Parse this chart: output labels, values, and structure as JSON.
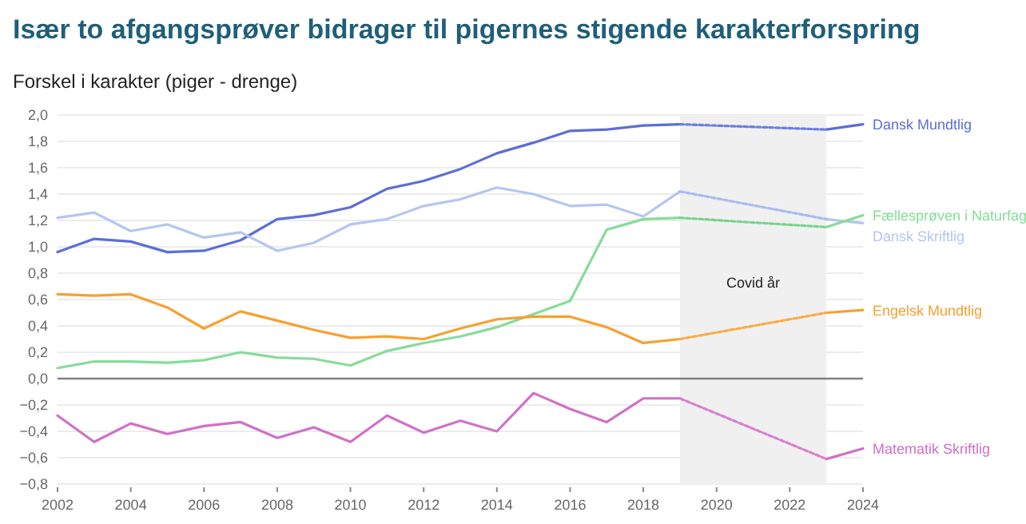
{
  "chart_data": {
    "type": "line",
    "title": "Især to afgangsprøver bidrager til pigernes stigende karakterforspring",
    "ylabel": "Forskel i karakter (piger - drenge)",
    "x": [
      2002,
      2003,
      2004,
      2005,
      2006,
      2007,
      2008,
      2009,
      2010,
      2011,
      2012,
      2013,
      2014,
      2015,
      2016,
      2017,
      2018,
      2019,
      2020,
      2021,
      2022,
      2023,
      2024
    ],
    "xlim": [
      2002,
      2024
    ],
    "xticks": [
      2002,
      2004,
      2006,
      2008,
      2010,
      2012,
      2014,
      2016,
      2018,
      2020,
      2022,
      2024
    ],
    "ylim": [
      -0.8,
      2.0
    ],
    "yticks": [
      {
        "value": -0.8,
        "label": "−0,8"
      },
      {
        "value": -0.6,
        "label": "−0,6"
      },
      {
        "value": -0.4,
        "label": "−0,4"
      },
      {
        "value": -0.2,
        "label": "−0,2"
      },
      {
        "value": 0,
        "label": "0,0"
      },
      {
        "value": 0.2,
        "label": "0,2"
      },
      {
        "value": 0.4,
        "label": "0,4"
      },
      {
        "value": 0.6,
        "label": "0,6"
      },
      {
        "value": 0.8,
        "label": "0,8"
      },
      {
        "value": 1.0,
        "label": "1,0"
      },
      {
        "value": 1.2,
        "label": "1,2"
      },
      {
        "value": 1.4,
        "label": "1,4"
      },
      {
        "value": 1.6,
        "label": "1,6"
      },
      {
        "value": 1.8,
        "label": "1,8"
      },
      {
        "value": 2.0,
        "label": "2,0"
      }
    ],
    "grid": "y",
    "line_style": "solid",
    "marker": "none",
    "ref_lines": [
      {
        "axis": "y",
        "value": 0,
        "color": "#808080"
      }
    ],
    "bands": [
      {
        "axis": "x",
        "from": 2019,
        "to": 2023,
        "label": "Covid år",
        "color": "#f0f0f0"
      }
    ],
    "series": [
      {
        "name": "Dansk Mundtlig",
        "color": "#5b6fd6",
        "values": [
          0.96,
          1.06,
          1.04,
          0.96,
          0.97,
          1.05,
          1.21,
          1.24,
          1.3,
          1.44,
          1.5,
          1.59,
          1.71,
          1.79,
          1.88,
          1.89,
          1.92,
          1.93,
          null,
          null,
          null,
          1.89,
          1.93
        ]
      },
      {
        "name": "Dansk Skriftlig",
        "color": "#b4c6f0",
        "values": [
          1.22,
          1.26,
          1.12,
          1.17,
          1.07,
          1.11,
          0.97,
          1.03,
          1.17,
          1.21,
          1.31,
          1.36,
          1.45,
          1.4,
          1.31,
          1.32,
          1.23,
          1.42,
          null,
          null,
          null,
          1.21,
          1.18
        ]
      },
      {
        "name": "Fællesprøven i Naturfag",
        "color": "#86dc98",
        "values": [
          0.08,
          0.13,
          0.13,
          0.12,
          0.14,
          0.2,
          0.16,
          0.15,
          0.1,
          0.21,
          0.27,
          0.32,
          0.39,
          0.49,
          0.59,
          1.13,
          1.21,
          1.22,
          null,
          null,
          null,
          1.15,
          1.24
        ]
      },
      {
        "name": "Engelsk Mundtlig",
        "color": "#f7a030",
        "values": [
          0.64,
          0.63,
          0.64,
          0.54,
          0.38,
          0.51,
          0.44,
          0.37,
          0.31,
          0.32,
          0.3,
          0.38,
          0.45,
          0.47,
          0.47,
          0.39,
          0.27,
          0.3,
          null,
          null,
          null,
          0.5,
          0.52
        ]
      },
      {
        "name": "Matematik Skriftlig",
        "color": "#d070c8",
        "values": [
          -0.28,
          -0.48,
          -0.34,
          -0.42,
          -0.36,
          -0.33,
          -0.45,
          -0.37,
          -0.48,
          -0.28,
          -0.41,
          -0.32,
          -0.4,
          -0.11,
          -0.23,
          -0.33,
          -0.15,
          -0.15,
          null,
          null,
          null,
          -0.61,
          -0.53
        ]
      },
      {
        "color": "#6b7fe0",
        "line_style": "dotted",
        "values": [
          null,
          null,
          null,
          null,
          null,
          null,
          null,
          null,
          null,
          null,
          null,
          null,
          null,
          null,
          null,
          null,
          null,
          1.93,
          null,
          null,
          null,
          1.89,
          null
        ]
      },
      {
        "color": "#a8bcec",
        "line_style": "dotted",
        "values": [
          null,
          null,
          null,
          null,
          null,
          null,
          null,
          null,
          null,
          null,
          null,
          null,
          null,
          null,
          null,
          null,
          null,
          1.42,
          null,
          null,
          null,
          1.21,
          null
        ]
      },
      {
        "color": "#78d28c",
        "line_style": "dotted",
        "values": [
          null,
          null,
          null,
          null,
          null,
          null,
          null,
          null,
          null,
          null,
          null,
          null,
          null,
          null,
          null,
          null,
          null,
          1.22,
          null,
          null,
          null,
          1.15,
          null
        ]
      },
      {
        "color": "#f9ac48",
        "line_style": "dotted",
        "values": [
          null,
          null,
          null,
          null,
          null,
          null,
          null,
          null,
          null,
          null,
          null,
          null,
          null,
          null,
          null,
          null,
          null,
          0.3,
          null,
          null,
          null,
          0.5,
          null
        ]
      },
      {
        "color": "#d880d0",
        "line_style": "dotted",
        "values": [
          null,
          null,
          null,
          null,
          null,
          null,
          null,
          null,
          null,
          null,
          null,
          null,
          null,
          null,
          null,
          null,
          null,
          -0.15,
          null,
          null,
          null,
          -0.61,
          null
        ]
      }
    ]
  }
}
